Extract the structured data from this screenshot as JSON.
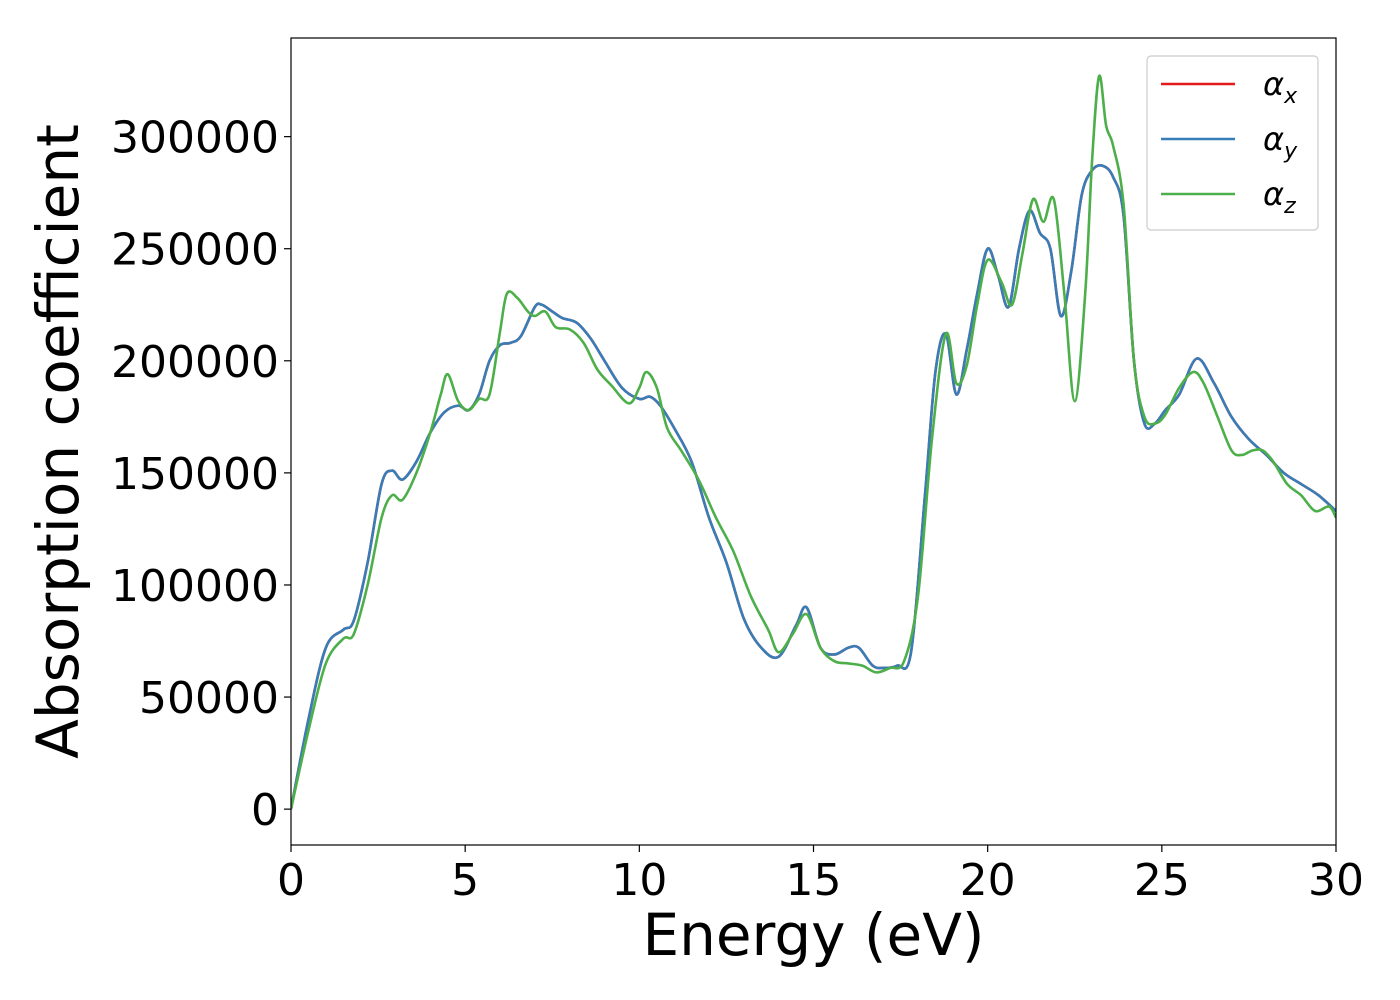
{
  "chart_data": {
    "type": "line",
    "title": "",
    "xlabel": "Energy (eV)",
    "ylabel": "Absorption coefficient",
    "xlim": [
      0,
      30
    ],
    "ylim": [
      -16000,
      344000
    ],
    "xticks": [
      "0",
      "5",
      "10",
      "15",
      "20",
      "25",
      "30"
    ],
    "yticks": [
      "0",
      "50000",
      "100000",
      "150000",
      "200000",
      "250000",
      "300000"
    ],
    "grid": false,
    "legend_position": "top-right",
    "series": [
      {
        "name": "αx",
        "symbol": "α",
        "subscript": "x",
        "color": "#e41a1c",
        "x": [
          0,
          0.5,
          1.0,
          1.5,
          1.8,
          2.2,
          2.6,
          2.9,
          3.2,
          3.6,
          4.0,
          4.4,
          4.8,
          5.1,
          5.4,
          5.7,
          6.0,
          6.3,
          6.6,
          7.0,
          7.2,
          7.5,
          7.8,
          8.2,
          8.6,
          9.0,
          9.5,
          10.0,
          10.3,
          10.6,
          11.0,
          11.5,
          12.0,
          12.5,
          13.0,
          13.5,
          14.0,
          14.5,
          14.8,
          15.2,
          15.6,
          16.0,
          16.3,
          16.7,
          17.0,
          17.4,
          17.8,
          18.2,
          18.5,
          18.8,
          19.1,
          19.4,
          19.7,
          20.0,
          20.3,
          20.6,
          20.9,
          21.2,
          21.5,
          21.8,
          22.1,
          22.4,
          22.7,
          23.0,
          23.3,
          23.6,
          23.9,
          24.2,
          24.5,
          24.8,
          25.1,
          25.5,
          26.0,
          26.5,
          27.0,
          27.5,
          28.0,
          28.5,
          29.0,
          29.5,
          30.0
        ],
        "y": [
          0,
          40000,
          72000,
          80000,
          84000,
          110000,
          145000,
          151000,
          147000,
          155000,
          168000,
          177000,
          180000,
          178000,
          185000,
          200000,
          207000,
          208000,
          211000,
          224000,
          225000,
          222000,
          219000,
          217000,
          210000,
          200000,
          188000,
          183000,
          184000,
          180000,
          170000,
          155000,
          130000,
          110000,
          85000,
          72000,
          68000,
          82000,
          90000,
          72000,
          69000,
          72000,
          72000,
          64000,
          63000,
          64000,
          70000,
          140000,
          195000,
          212000,
          185000,
          205000,
          230000,
          250000,
          238000,
          224000,
          250000,
          267000,
          257000,
          250000,
          220000,
          240000,
          274000,
          285000,
          287000,
          282000,
          265000,
          200000,
          172000,
          172000,
          178000,
          185000,
          201000,
          190000,
          175000,
          165000,
          158000,
          150000,
          145000,
          140000,
          133000
        ]
      },
      {
        "name": "αy",
        "symbol": "α",
        "subscript": "y",
        "color": "#377eb8",
        "x": [
          0,
          0.5,
          1.0,
          1.5,
          1.8,
          2.2,
          2.6,
          2.9,
          3.2,
          3.6,
          4.0,
          4.4,
          4.8,
          5.1,
          5.4,
          5.7,
          6.0,
          6.3,
          6.6,
          7.0,
          7.2,
          7.5,
          7.8,
          8.2,
          8.6,
          9.0,
          9.5,
          10.0,
          10.3,
          10.6,
          11.0,
          11.5,
          12.0,
          12.5,
          13.0,
          13.5,
          14.0,
          14.5,
          14.8,
          15.2,
          15.6,
          16.0,
          16.3,
          16.7,
          17.0,
          17.4,
          17.8,
          18.2,
          18.5,
          18.8,
          19.1,
          19.4,
          19.7,
          20.0,
          20.3,
          20.6,
          20.9,
          21.2,
          21.5,
          21.8,
          22.1,
          22.4,
          22.7,
          23.0,
          23.3,
          23.6,
          23.9,
          24.2,
          24.5,
          24.8,
          25.1,
          25.5,
          26.0,
          26.5,
          27.0,
          27.5,
          28.0,
          28.5,
          29.0,
          29.5,
          30.0
        ],
        "y": [
          0,
          40000,
          72000,
          80000,
          84000,
          110000,
          145000,
          151000,
          147000,
          155000,
          168000,
          177000,
          180000,
          178000,
          185000,
          200000,
          207000,
          208000,
          211000,
          224000,
          225000,
          222000,
          219000,
          217000,
          210000,
          200000,
          188000,
          183000,
          184000,
          180000,
          170000,
          155000,
          130000,
          110000,
          85000,
          72000,
          68000,
          82000,
          90000,
          72000,
          69000,
          72000,
          72000,
          64000,
          63000,
          64000,
          70000,
          140000,
          195000,
          212000,
          185000,
          205000,
          230000,
          250000,
          238000,
          224000,
          250000,
          267000,
          257000,
          250000,
          220000,
          240000,
          274000,
          285000,
          287000,
          282000,
          265000,
          200000,
          172000,
          172000,
          178000,
          185000,
          201000,
          190000,
          175000,
          165000,
          158000,
          150000,
          145000,
          140000,
          133000
        ]
      },
      {
        "name": "αz",
        "symbol": "α",
        "subscript": "z",
        "color": "#4daf4a",
        "x": [
          0,
          0.5,
          1.0,
          1.5,
          1.8,
          2.2,
          2.6,
          2.9,
          3.2,
          3.6,
          4.0,
          4.3,
          4.5,
          4.8,
          5.1,
          5.4,
          5.7,
          6.0,
          6.2,
          6.5,
          6.8,
          7.0,
          7.3,
          7.6,
          8.0,
          8.4,
          8.8,
          9.2,
          9.7,
          10.0,
          10.2,
          10.5,
          10.8,
          11.2,
          11.7,
          12.2,
          12.7,
          13.2,
          13.7,
          14.0,
          14.4,
          14.8,
          15.2,
          15.6,
          16.0,
          16.4,
          16.8,
          17.2,
          17.6,
          18.0,
          18.4,
          18.8,
          19.1,
          19.4,
          19.7,
          20.0,
          20.4,
          20.7,
          21.0,
          21.3,
          21.6,
          21.9,
          22.2,
          22.5,
          22.8,
          23.0,
          23.2,
          23.4,
          23.6,
          23.9,
          24.2,
          24.5,
          24.8,
          25.1,
          25.5,
          25.9,
          26.2,
          26.6,
          27.0,
          27.3,
          27.6,
          27.9,
          28.2,
          28.6,
          29.0,
          29.4,
          29.8,
          30.0
        ],
        "y": [
          0,
          35000,
          65000,
          76000,
          78000,
          100000,
          130000,
          140000,
          138000,
          150000,
          168000,
          185000,
          194000,
          182000,
          178000,
          183000,
          185000,
          213000,
          230000,
          228000,
          222000,
          220000,
          222000,
          215000,
          214000,
          208000,
          196000,
          189000,
          181000,
          188000,
          195000,
          188000,
          170000,
          160000,
          147000,
          130000,
          115000,
          95000,
          80000,
          70000,
          78000,
          87000,
          72000,
          66000,
          65000,
          64000,
          61000,
          63000,
          66000,
          95000,
          165000,
          212000,
          190000,
          198000,
          225000,
          245000,
          235000,
          225000,
          248000,
          272000,
          262000,
          272000,
          230000,
          182000,
          230000,
          290000,
          327000,
          305000,
          296000,
          270000,
          200000,
          175000,
          172000,
          176000,
          188000,
          195000,
          190000,
          175000,
          160000,
          158000,
          160000,
          160000,
          155000,
          145000,
          140000,
          133000,
          135000,
          130000
        ]
      }
    ]
  }
}
